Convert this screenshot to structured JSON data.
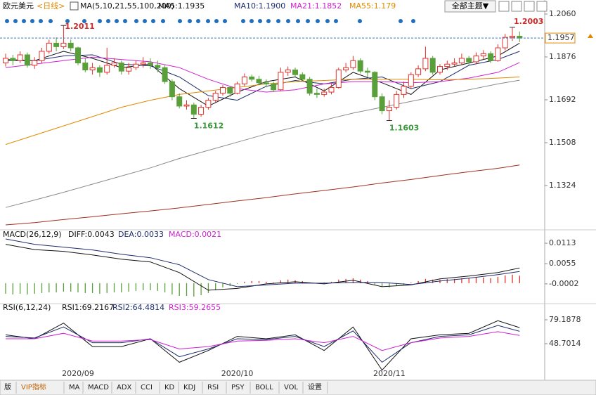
{
  "toolbar": {
    "theme_button": "全部主题▼",
    "tabs": [
      "版",
      "VIP指标",
      "MA",
      "MACD",
      "ADX",
      "CCI",
      "KD",
      "KDJ",
      "RSI",
      "PSY",
      "BOLL",
      "VOL",
      "设置"
    ]
  },
  "chart_data": [
    {
      "type": "candlestick",
      "title": "欧元美元",
      "period": "<日线>",
      "indicator": "MA(5,10,21,55,100,200)",
      "up_color": "#e0302a",
      "down_color": "#5aa03a",
      "categories": [
        null,
        null,
        null,
        null,
        null,
        null,
        null,
        null,
        null,
        null,
        "2020/09",
        null,
        null,
        null,
        null,
        null,
        null,
        null,
        null,
        null,
        null,
        null,
        null,
        null,
        null,
        null,
        null,
        null,
        null,
        null,
        null,
        null,
        "2020/10",
        null,
        null,
        null,
        null,
        null,
        null,
        null,
        null,
        null,
        null,
        null,
        null,
        null,
        null,
        null,
        null,
        null,
        null,
        null,
        null,
        "2020/11",
        null,
        null,
        null,
        null,
        null,
        null,
        null,
        null,
        null,
        null,
        null,
        null,
        null,
        null,
        null,
        null,
        null,
        null
      ],
      "open": [
        1.185,
        1.187,
        1.186,
        1.1885,
        1.184,
        1.186,
        1.19,
        1.1935,
        1.192,
        1.1935,
        1.1915,
        1.185,
        1.182,
        1.183,
        1.181,
        1.184,
        1.185,
        1.1815,
        1.183,
        1.1845,
        1.185,
        1.184,
        1.183,
        1.177,
        1.1705,
        1.1665,
        1.167,
        1.163,
        1.166,
        1.169,
        1.172,
        1.1745,
        1.172,
        1.176,
        1.179,
        1.178,
        1.1765,
        1.176,
        1.1735,
        1.181,
        1.182,
        1.18,
        1.178,
        1.172,
        1.1715,
        1.1725,
        1.1745,
        1.182,
        1.183,
        1.186,
        1.1815,
        1.181,
        1.1705,
        1.1645,
        1.166,
        1.1715,
        1.175,
        1.18,
        1.1825,
        1.187,
        1.181,
        1.1835,
        1.1845,
        1.185,
        1.187,
        1.1855,
        1.188,
        1.189,
        1.186,
        1.1915,
        1.196,
        1.1965
      ],
      "high": [
        1.189,
        1.1885,
        1.19,
        1.1895,
        1.1875,
        1.1915,
        1.195,
        1.196,
        1.2011,
        1.195,
        1.192,
        1.187,
        1.185,
        1.184,
        1.1915,
        1.187,
        1.186,
        1.185,
        1.186,
        1.1875,
        1.187,
        1.186,
        1.184,
        1.178,
        1.172,
        1.169,
        1.168,
        1.167,
        1.17,
        1.173,
        1.1755,
        1.175,
        1.177,
        1.1805,
        1.18,
        1.1795,
        1.178,
        1.177,
        1.183,
        1.1835,
        1.183,
        1.181,
        1.179,
        1.174,
        1.174,
        1.176,
        1.183,
        1.185,
        1.188,
        1.187,
        1.183,
        1.1815,
        1.172,
        1.169,
        1.173,
        1.177,
        1.181,
        1.184,
        1.192,
        1.188,
        1.1845,
        1.186,
        1.187,
        1.189,
        1.188,
        1.1895,
        1.1905,
        1.19,
        1.193,
        1.1975,
        1.2003,
        1.1985
      ],
      "low": [
        1.1835,
        1.184,
        1.185,
        1.183,
        1.1825,
        1.185,
        1.189,
        1.19,
        1.191,
        1.19,
        1.184,
        1.181,
        1.18,
        1.179,
        1.18,
        1.183,
        1.18,
        1.18,
        1.182,
        1.183,
        1.1825,
        1.181,
        1.176,
        1.169,
        1.1655,
        1.165,
        1.1612,
        1.162,
        1.165,
        1.168,
        1.171,
        1.1705,
        1.1715,
        1.175,
        1.177,
        1.1755,
        1.1745,
        1.1725,
        1.173,
        1.1795,
        1.179,
        1.177,
        1.171,
        1.17,
        1.1705,
        1.1715,
        1.174,
        1.181,
        1.182,
        1.1805,
        1.179,
        1.169,
        1.163,
        1.1603,
        1.165,
        1.17,
        1.174,
        1.179,
        1.1815,
        1.18,
        1.18,
        1.182,
        1.1835,
        1.184,
        1.184,
        1.1845,
        1.1865,
        1.185,
        1.1855,
        1.1905,
        1.1945,
        1.194
      ],
      "close": [
        1.187,
        1.186,
        1.1885,
        1.184,
        1.186,
        1.19,
        1.1935,
        1.192,
        1.1935,
        1.1915,
        1.185,
        1.182,
        1.183,
        1.181,
        1.184,
        1.185,
        1.1815,
        1.183,
        1.1845,
        1.185,
        1.184,
        1.183,
        1.177,
        1.1705,
        1.1665,
        1.167,
        1.163,
        1.166,
        1.169,
        1.172,
        1.1745,
        1.172,
        1.176,
        1.179,
        1.178,
        1.1765,
        1.176,
        1.1735,
        1.181,
        1.182,
        1.18,
        1.178,
        1.172,
        1.1715,
        1.1725,
        1.1745,
        1.182,
        1.183,
        1.186,
        1.1815,
        1.181,
        1.1705,
        1.1645,
        1.166,
        1.1715,
        1.175,
        1.18,
        1.1825,
        1.187,
        1.181,
        1.1835,
        1.1845,
        1.185,
        1.187,
        1.1855,
        1.188,
        1.189,
        1.186,
        1.1915,
        1.196,
        1.1965,
        1.1957
      ],
      "x": [
        0,
        4,
        8,
        12,
        16,
        20,
        24,
        28,
        32,
        36,
        40,
        44,
        48,
        52,
        56,
        60,
        64,
        68,
        71
      ],
      "series": [
        {
          "name": "MA5:1.1935",
          "color": "#111111",
          "values": [
            1.1865,
            1.186,
            1.19,
            1.187,
            1.183,
            1.1845,
            1.174,
            1.1665,
            1.1725,
            1.177,
            1.179,
            1.173,
            1.181,
            1.1765,
            1.1715,
            1.182,
            1.185,
            1.188,
            1.1935
          ]
        },
        {
          "name": "MA10:1.1900",
          "color": "#1c2c6c",
          "values": [
            1.186,
            1.186,
            1.188,
            1.1885,
            1.1845,
            1.1838,
            1.179,
            1.171,
            1.169,
            1.175,
            1.1775,
            1.176,
            1.178,
            1.179,
            1.174,
            1.177,
            1.184,
            1.1865,
            1.19
          ]
        },
        {
          "name": "MA21:1.1852",
          "color": "#d020d0",
          "values": [
            1.183,
            1.1845,
            1.186,
            1.1875,
            1.1865,
            1.1855,
            1.183,
            1.178,
            1.174,
            1.1725,
            1.1735,
            1.176,
            1.177,
            1.177,
            1.1765,
            1.177,
            1.1785,
            1.181,
            1.1852
          ]
        },
        {
          "name": "MA55:1.179",
          "color": "#e08a00",
          "values": [
            1.15,
            1.154,
            1.158,
            1.162,
            1.166,
            1.169,
            1.1715,
            1.173,
            1.1745,
            1.176,
            1.177,
            1.1775,
            1.178,
            1.178,
            1.178,
            1.1778,
            1.178,
            1.1785,
            1.179
          ]
        },
        {
          "color": "#8a8a8a",
          "values": [
            1.123,
            1.1262,
            1.1295,
            1.133,
            1.1365,
            1.14,
            1.144,
            1.1475,
            1.151,
            1.1545,
            1.1575,
            1.1605,
            1.1635,
            1.166,
            1.1685,
            1.171,
            1.1735,
            1.176,
            1.1776
          ]
        },
        {
          "color": "#a03020",
          "values": [
            1.1155,
            1.1165,
            1.1178,
            1.119,
            1.1203,
            1.1215,
            1.1228,
            1.1243,
            1.1258,
            1.1272,
            1.1288,
            1.1303,
            1.1318,
            1.1335,
            1.135,
            1.1367,
            1.1383,
            1.1398,
            1.1412
          ]
        }
      ],
      "ylim": [
        1.1137,
        1.2078
      ],
      "yticks": [
        {
          "value": 1.206,
          "label": "1.2060"
        },
        1.1876,
        1.1692,
        1.1508,
        1.1324
      ]
    },
    {
      "type": "macd",
      "title": "MACD(26,12,9)",
      "x": [
        0,
        4,
        8,
        12,
        16,
        20,
        24,
        28,
        32,
        36,
        40,
        44,
        48,
        52,
        56,
        60,
        64,
        68,
        71
      ],
      "series": [
        {
          "name": "DIFF:0.0043",
          "color": "#111111",
          "values": [
            0.011,
            0.0095,
            0.009,
            0.008,
            0.0068,
            0.006,
            0.003,
            -0.002,
            -0.0015,
            -0.0002,
            0.0004,
            -0.0002,
            0.0008,
            -0.001,
            -0.0005,
            0.0012,
            0.002,
            0.003,
            0.0043
          ]
        },
        {
          "name": "DEA:0.0033",
          "color": "#1c2c6c",
          "values": [
            0.0125,
            0.011,
            0.0102,
            0.0094,
            0.0082,
            0.0072,
            0.0052,
            0.001,
            -0.001,
            -0.0005,
            0.0,
            0.0,
            0.0002,
            0.0002,
            -0.0004,
            0.0006,
            0.0014,
            0.0024,
            0.0033
          ]
        }
      ],
      "histogram": {
        "name": "MACD:0.0021",
        "color": "#d020d0",
        "up_color": "#e0302a",
        "down_color": "#5aa03a",
        "values": [
          -0.003,
          -0.0032,
          -0.003,
          -0.0032,
          -0.003,
          -0.0028,
          -0.0026,
          -0.0026,
          -0.0024,
          -0.0024,
          -0.0026,
          -0.0028,
          -0.0028,
          -0.003,
          -0.0028,
          -0.0026,
          -0.0026,
          -0.0024,
          -0.0022,
          -0.002,
          -0.002,
          -0.0022,
          -0.0026,
          -0.0032,
          -0.0036,
          -0.0036,
          -0.0038,
          -0.0034,
          -0.0028,
          -0.002,
          -0.0012,
          -0.0008,
          -0.0002,
          0.0004,
          0.0006,
          0.0006,
          0.0004,
          0.0002,
          0.0008,
          0.001,
          0.0008,
          0.0006,
          0.0002,
          0.0001,
          0.0002,
          0.0004,
          0.001,
          0.0012,
          0.0014,
          0.001,
          0.0006,
          -0.0004,
          -0.001,
          -0.0012,
          -0.0008,
          -0.0004,
          0.0002,
          0.0006,
          0.0012,
          0.001,
          0.001,
          0.0012,
          0.0012,
          0.0014,
          0.0014,
          0.0016,
          0.0016,
          0.0014,
          0.0018,
          0.0022,
          0.0024,
          0.0021
        ]
      },
      "ylim": [
        -0.005,
        0.0139
      ],
      "yticks": [
        0.0113,
        0.0055,
        -0.0002
      ]
    },
    {
      "type": "rsi",
      "title": "RSI(6,12,24)",
      "x": [
        0,
        4,
        8,
        12,
        16,
        20,
        24,
        28,
        32,
        36,
        40,
        44,
        48,
        52,
        56,
        60,
        64,
        68,
        71
      ],
      "series": [
        {
          "name": "RSI1:69.2167",
          "color": "#111111",
          "values": [
            60,
            55,
            75,
            45,
            45,
            55,
            25,
            40,
            58,
            55,
            60,
            40,
            70,
            15,
            55,
            60,
            62,
            78,
            69.2167
          ]
        },
        {
          "name": "RSI2:64.4814",
          "color": "#1c2c6c",
          "values": [
            58,
            56,
            70,
            50,
            50,
            55,
            32,
            42,
            55,
            54,
            58,
            45,
            65,
            25,
            50,
            58,
            60,
            72,
            64.4814
          ]
        },
        {
          "name": "RSI3:59.2655",
          "color": "#d020d0",
          "values": [
            55,
            55,
            62,
            52,
            52,
            54,
            42,
            45,
            52,
            53,
            55,
            50,
            58,
            40,
            50,
            56,
            58,
            64,
            59.2655
          ]
        }
      ],
      "ylim": [
        3,
        95.3
      ],
      "yticks": [
        79.1878,
        48.7014
      ]
    }
  ]
}
